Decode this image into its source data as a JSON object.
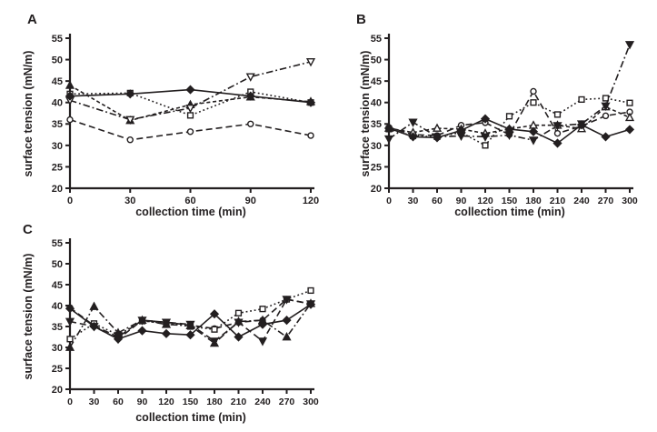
{
  "figure": {
    "background": "#ffffff",
    "ink_color": "#231f20",
    "description": "Three-panel line chart figure of surface tension versus collection time"
  },
  "chart_data": [
    {
      "type": "line",
      "panel_label": "A",
      "xlabel": "collection time (min)",
      "ylabel": "surface tension (mN/m)",
      "x": [
        0,
        30,
        60,
        90,
        120
      ],
      "xlim": [
        0,
        120
      ],
      "ylim": [
        20,
        55
      ],
      "yticks": [
        20,
        25,
        30,
        35,
        40,
        45,
        50,
        55
      ],
      "grid": false,
      "legend_position": "none",
      "series": [
        {
          "name": "circle-series",
          "marker": "circle",
          "filled": false,
          "line": "dashed",
          "values": [
            36,
            31.3,
            33.2,
            35,
            32.3
          ]
        },
        {
          "name": "square-series",
          "marker": "square",
          "filled": false,
          "line": "dotted",
          "values": [
            42,
            42.2,
            37,
            42.5,
            40
          ]
        },
        {
          "name": "triangle-up-series",
          "marker": "triangle-up",
          "filled": true,
          "line": "shortdash",
          "values": [
            44,
            35.8,
            39.5,
            41.3,
            40.2
          ]
        },
        {
          "name": "triangle-down-series",
          "marker": "triangle-down",
          "filled": false,
          "line": "dashdot",
          "values": [
            40.5,
            36,
            38.7,
            46,
            49.5
          ]
        },
        {
          "name": "diamond-series",
          "marker": "diamond",
          "filled": true,
          "line": "solid",
          "values": [
            41.5,
            42,
            43,
            41.5,
            40
          ]
        }
      ]
    },
    {
      "type": "line",
      "panel_label": "B",
      "xlabel": "collection time (min)",
      "ylabel": "surface tension (mN/m)",
      "x": [
        0,
        30,
        60,
        90,
        120,
        150,
        180,
        210,
        240,
        270,
        300
      ],
      "xlim": [
        0,
        300
      ],
      "ylim": [
        20,
        55
      ],
      "yticks": [
        20,
        25,
        30,
        35,
        40,
        45,
        50,
        55
      ],
      "grid": false,
      "legend_position": "none",
      "series": [
        {
          "name": "circle-series",
          "marker": "circle",
          "filled": false,
          "line": "dashed",
          "values": [
            34.2,
            32.5,
            32.3,
            34.7,
            35.3,
            32.5,
            42.6,
            32.8,
            34.5,
            36.9,
            37.8
          ]
        },
        {
          "name": "square-series",
          "marker": "square",
          "filled": false,
          "line": "dotted",
          "values": [
            33.8,
            32.2,
            32,
            33,
            30,
            36.8,
            40,
            37.2,
            40.7,
            41,
            39.9
          ]
        },
        {
          "name": "triangle-up-series",
          "marker": "triangle-up",
          "filled": false,
          "line": "shortdash",
          "values": [
            34,
            33,
            34,
            33.8,
            32.8,
            33.8,
            34.7,
            34.7,
            33.9,
            39,
            36.5
          ]
        },
        {
          "name": "triangle-down-series",
          "marker": "triangle-down",
          "filled": true,
          "line": "dashdot",
          "values": [
            31.5,
            35.4,
            32,
            32.2,
            32,
            32.4,
            31.2,
            34.6,
            35,
            39.2,
            53.5
          ]
        },
        {
          "name": "diamond-series",
          "marker": "diamond",
          "filled": true,
          "line": "solid",
          "values": [
            34,
            32,
            31.8,
            33.5,
            36.2,
            33.8,
            33.2,
            30.5,
            34.8,
            32,
            33.7
          ]
        }
      ]
    },
    {
      "type": "line",
      "panel_label": "C",
      "xlabel": "collection time (min)",
      "ylabel": "surface tension (mN/m)",
      "x": [
        0,
        30,
        60,
        90,
        120,
        150,
        180,
        210,
        240,
        270,
        300
      ],
      "xlim": [
        0,
        300
      ],
      "ylim": [
        20,
        55
      ],
      "yticks": [
        20,
        25,
        30,
        35,
        40,
        45,
        50,
        55
      ],
      "grid": false,
      "legend_position": "none",
      "series": [
        {
          "name": "circle-series",
          "marker": "circle",
          "filled": true,
          "line": "dashed",
          "values": [
            39.5,
            35.2,
            32.5,
            36.5,
            36,
            35.3,
            34.5,
            36,
            36.5,
            41.5,
            40.4
          ]
        },
        {
          "name": "square-series",
          "marker": "square",
          "filled": false,
          "line": "dotted",
          "values": [
            32,
            35.7,
            33,
            36.3,
            35.8,
            35,
            34.3,
            38.2,
            39.2,
            41.5,
            43.6
          ]
        },
        {
          "name": "triangle-up-series",
          "marker": "triangle-up",
          "filled": true,
          "line": "dashdot",
          "values": [
            30,
            39.8,
            33.5,
            36.5,
            35.5,
            35.2,
            31,
            36.2,
            36.5,
            32.5,
            40.5
          ]
        },
        {
          "name": "triangle-down-series",
          "marker": "triangle-down",
          "filled": true,
          "line": "dashed",
          "values": [
            36.2,
            35,
            32,
            36.5,
            36,
            35.5,
            31.5,
            36,
            31.5,
            41.5,
            40.4
          ]
        },
        {
          "name": "diamond-series",
          "marker": "diamond",
          "filled": true,
          "line": "solid",
          "values": [
            39.3,
            35,
            32,
            34,
            33.3,
            33,
            38,
            32.5,
            35.5,
            36.5,
            40.3
          ]
        }
      ]
    }
  ]
}
